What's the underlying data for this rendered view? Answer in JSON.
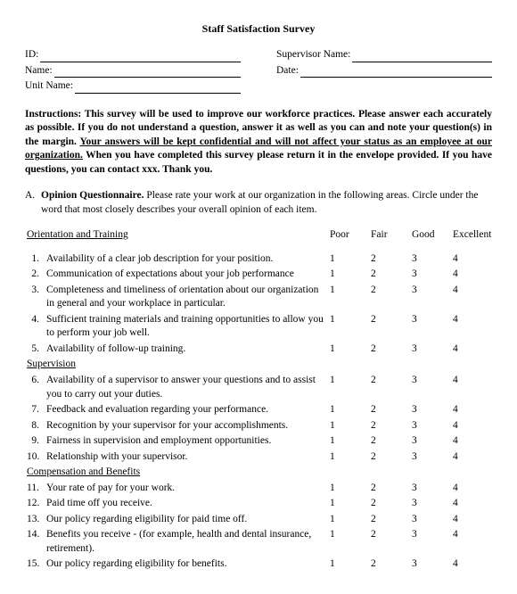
{
  "title": "Staff Satisfaction Survey",
  "fields": {
    "id": "ID:",
    "name": "Name:",
    "unit": "Unit Name:",
    "supervisor": "Supervisor Name:",
    "date": "Date:"
  },
  "instructions": {
    "p1": "Instructions:  This survey will be used to improve our workforce practices.  Please answer each accurately as possible.  If you do not understand a question, answer it as well as you can and note your question(s) in the margin.  ",
    "u": "Your answers will be kept confidential and will not affect your status as an employee at our organization.",
    "p2": "  When you have completed this survey please return it in the envelope provided.  If you have questions, you can contact xxx.  Thank you."
  },
  "sectionA": {
    "letter": "A.",
    "title": "Opinion Questionnaire.",
    "text": "  Please rate your work at our organization in the following areas.  Circle under the word that most closely describes your overall opinion of each item."
  },
  "scale": {
    "h1": "Poor",
    "h2": "Fair",
    "h3": "Good",
    "h4": "Excellent",
    "v1": "1",
    "v2": "2",
    "v3": "3",
    "v4": "4"
  },
  "groups": {
    "g1": "Orientation and Training",
    "g2": "Supervision",
    "g3": "Compensation and Benefits"
  },
  "items": {
    "n1": "1.",
    "t1": "Availability of a clear job description for your position.",
    "n2": "2.",
    "t2": "Communication of expectations about your job performance",
    "n3": "3.",
    "t3": "Completeness and timeliness of orientation about our organization in general and your workplace in particular.",
    "n4": "4.",
    "t4": "Sufficient training materials and training opportunities to allow you to perform your job well.",
    "n5": "5.",
    "t5": "Availability of follow-up training.",
    "n6": "6.",
    "t6": "Availability of a supervisor to answer your questions and to assist you to carry out your duties.",
    "n7": "7.",
    "t7": "Feedback and evaluation regarding your performance.",
    "n8": "8.",
    "t8": "Recognition by your supervisor for your accomplishments.",
    "n9": "9.",
    "t9": "Fairness in supervision and employment opportunities.",
    "n10": "10.",
    "t10": "Relationship with your supervisor.",
    "n11": "11.",
    "t11": "Your rate of pay for your work.",
    "n12": "12.",
    "t12": "Paid time off you receive.",
    "n13": "13.",
    "t13": "Our policy regarding eligibility for paid time off.",
    "n14": "14.",
    "t14": "Benefits you receive - (for example, health and dental insurance, retirement).",
    "n15": "15.",
    "t15": "Our policy regarding eligibility for benefits."
  }
}
